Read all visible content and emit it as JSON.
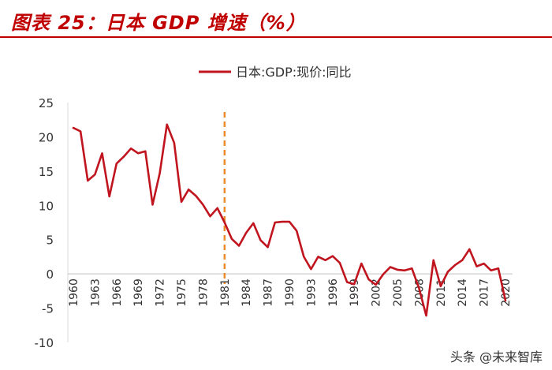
{
  "header": {
    "title": "图表 25：日本 GDP 增速（%）"
  },
  "watermark": {
    "text": "头条 @未来智库",
    "logo_text": "未来智库"
  },
  "colors": {
    "title": "#c00000",
    "series": "#c0141e",
    "divider": "#ec8a2c",
    "axis_text": "#333333"
  },
  "chart_data": {
    "type": "line",
    "title": "",
    "xlabel": "",
    "ylabel": "",
    "legend": "top-center",
    "grid": false,
    "ylim": [
      -10,
      25
    ],
    "yticks": [
      25,
      20,
      15,
      10,
      5,
      0,
      -5,
      -10
    ],
    "xticks": [
      "1960",
      "1963",
      "1966",
      "1969",
      "1972",
      "1975",
      "1978",
      "1981",
      "1984",
      "1987",
      "1990",
      "1993",
      "1996",
      "1999",
      "2002",
      "2005",
      "2008",
      "2011",
      "2014",
      "2017",
      "2020"
    ],
    "divider_year": 1981,
    "series": [
      {
        "name": "日本:GDP:现价:同比",
        "x": [
          1960,
          1961,
          1962,
          1963,
          1964,
          1965,
          1966,
          1967,
          1968,
          1969,
          1970,
          1971,
          1972,
          1973,
          1974,
          1975,
          1976,
          1977,
          1978,
          1979,
          1980,
          1981,
          1982,
          1983,
          1984,
          1985,
          1986,
          1987,
          1988,
          1989,
          1990,
          1991,
          1992,
          1993,
          1994,
          1995,
          1996,
          1997,
          1998,
          1999,
          2000,
          2001,
          2002,
          2003,
          2004,
          2005,
          2006,
          2007,
          2008,
          2009,
          2010,
          2011,
          2012,
          2013,
          2014,
          2015,
          2016,
          2017,
          2018,
          2019,
          2020
        ],
        "values": [
          21.3,
          20.8,
          13.6,
          14.5,
          17.6,
          11.3,
          16.1,
          17.1,
          18.3,
          17.6,
          17.9,
          10.1,
          14.7,
          21.8,
          19.1,
          10.5,
          12.3,
          11.4,
          10.1,
          8.4,
          9.6,
          7.5,
          5.1,
          4.1,
          6.0,
          7.4,
          4.9,
          3.9,
          7.5,
          7.6,
          7.6,
          6.3,
          2.5,
          0.7,
          2.5,
          2.0,
          2.6,
          1.6,
          -1.2,
          -1.5,
          1.5,
          -0.8,
          -1.6,
          -0.1,
          1.0,
          0.6,
          0.5,
          0.8,
          -2.1,
          -6.1,
          2.0,
          -1.8,
          0.3,
          1.3,
          2.0,
          3.6,
          1.1,
          1.5,
          0.5,
          0.8,
          -3.9
        ]
      }
    ]
  }
}
